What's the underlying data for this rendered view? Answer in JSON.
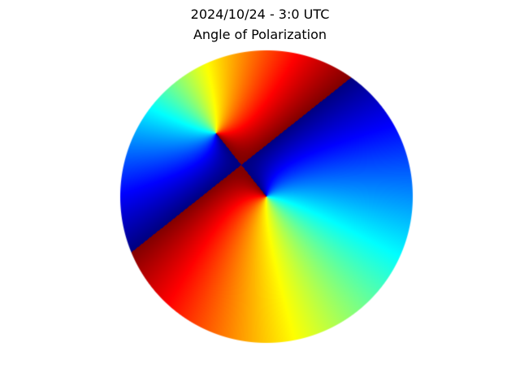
{
  "chart_data": {
    "type": "heatmap",
    "title": "2024/10/24 - 3:0 UTC",
    "subtitle": "Angle of Polarization",
    "projection": "polar all-sky disk",
    "colormap": "jet",
    "value_range": [
      -90,
      90
    ],
    "value_units": "degrees",
    "colorbar": false,
    "axes_visible": false,
    "grid": false,
    "features": {
      "sun_direction_singularity": "upper-left of disk center",
      "antisolar_singularity": "disk center",
      "discontinuity": "line from upper-left rim to lower-right rim where values wrap from -90 (dark blue) to 90 (dark red)"
    },
    "regions": [
      {
        "area": "upper-right half",
        "approx_value": -70,
        "color": "blue"
      },
      {
        "area": "lower-left half",
        "approx_value": 45,
        "color": "red-orange"
      },
      {
        "area": "ring around solar point",
        "approx_value": 0,
        "color": "yellow-green-cyan"
      }
    ]
  }
}
